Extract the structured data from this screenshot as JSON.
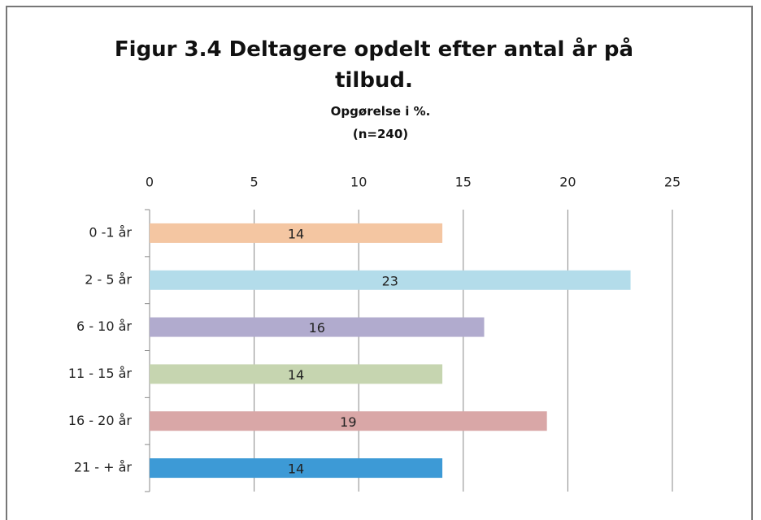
{
  "chart_data": {
    "type": "hbar",
    "title": "Figur  3.4  Deltagere opdelt efter antal år på tilbud.",
    "subtitle": "Opgørelse i %.",
    "note": "(n=240)",
    "categories": [
      "0 -1 år",
      "2 - 5 år",
      "6 - 10 år",
      "11 - 15 år",
      "16 - 20 år",
      "21 - + år"
    ],
    "values": [
      14,
      23,
      16,
      14,
      19,
      14
    ],
    "colors": [
      "#f4c6a2",
      "#b3dcea",
      "#b1abce",
      "#c6d5b0",
      "#d9a7a7",
      "#3d9ad6"
    ],
    "xlim": [
      0,
      25
    ],
    "xticks": [
      0,
      5,
      10,
      15,
      20,
      25
    ],
    "grid": true
  }
}
